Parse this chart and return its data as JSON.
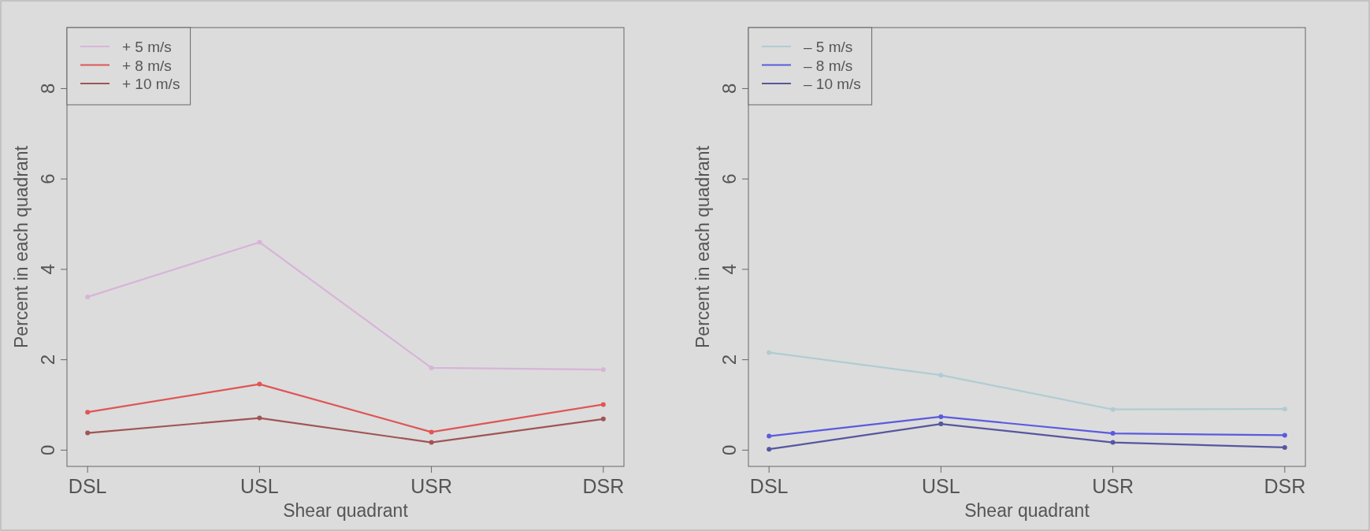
{
  "chart_data": [
    {
      "type": "line",
      "xlabel": "Shear quadrant",
      "ylabel": "Percent in each quadrant",
      "categories": [
        "DSL",
        "USL",
        "USR",
        "DSR"
      ],
      "ylim": [
        -0.36,
        9.35
      ],
      "yticks": [
        0,
        2,
        4,
        6,
        8
      ],
      "legend": "top left",
      "marker": "circle",
      "grid": false,
      "series": [
        {
          "name": "+ 5 m/s",
          "color": "#d8b4d8",
          "values": [
            3.39,
            4.6,
            1.82,
            1.78
          ]
        },
        {
          "name": "+ 8 m/s",
          "color": "#e05555",
          "values": [
            0.84,
            1.46,
            0.4,
            1.01
          ]
        },
        {
          "name": "+ 10 m/s",
          "color": "#a05454",
          "values": [
            0.38,
            0.71,
            0.17,
            0.69
          ]
        }
      ]
    },
    {
      "type": "line",
      "xlabel": "Shear quadrant",
      "ylabel": "Percent in each quadrant",
      "categories": [
        "DSL",
        "USL",
        "USR",
        "DSR"
      ],
      "ylim": [
        -0.36,
        9.35
      ],
      "yticks": [
        0,
        2,
        4,
        6,
        8
      ],
      "legend": "top left",
      "marker": "circle",
      "grid": false,
      "series": [
        {
          "name": "– 5 m/s",
          "color": "#b0ccd2",
          "values": [
            2.16,
            1.66,
            0.9,
            0.91
          ]
        },
        {
          "name": "– 8 m/s",
          "color": "#5a5ae0",
          "values": [
            0.31,
            0.74,
            0.37,
            0.33
          ]
        },
        {
          "name": "– 10 m/s",
          "color": "#5656a0",
          "values": [
            0.02,
            0.58,
            0.17,
            0.06
          ]
        }
      ]
    }
  ]
}
